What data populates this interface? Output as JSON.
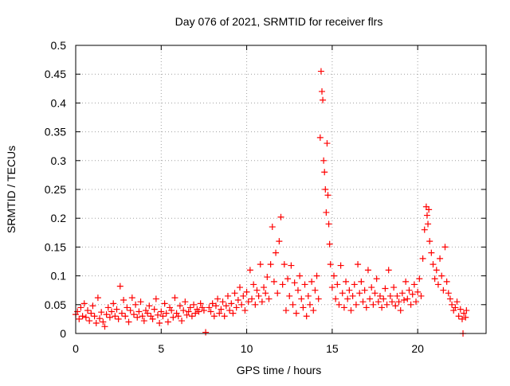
{
  "chart_data": {
    "type": "scatter",
    "title": "Day 076 of 2021, SRMTID for receiver flrs",
    "xlabel": "GPS time / hours",
    "ylabel": "SRMTID / TECUs",
    "xlim": [
      0,
      24
    ],
    "ylim": [
      0,
      0.5
    ],
    "x_ticks": [
      0,
      5,
      10,
      15,
      20
    ],
    "x_tick_labels": [
      "0",
      "5",
      "10",
      "15",
      "20"
    ],
    "y_ticks": [
      0,
      0.05,
      0.1,
      0.15,
      0.2,
      0.25,
      0.3,
      0.35,
      0.4,
      0.45,
      0.5
    ],
    "y_tick_labels": [
      "0",
      "0.05",
      "0.1",
      "0.15",
      "0.2",
      "0.25",
      "0.3",
      "0.35",
      "0.4",
      "0.45",
      "0.5"
    ],
    "grid": true,
    "marker": "+",
    "color": "#ff0000",
    "series": [
      {
        "marker": "+",
        "points": [
          [
            0.0,
            0.033
          ],
          [
            0.1,
            0.038
          ],
          [
            0.2,
            0.025
          ],
          [
            0.3,
            0.045
          ],
          [
            0.4,
            0.03
          ],
          [
            0.5,
            0.052
          ],
          [
            0.6,
            0.028
          ],
          [
            0.7,
            0.04
          ],
          [
            0.8,
            0.022
          ],
          [
            0.9,
            0.035
          ],
          [
            1.0,
            0.048
          ],
          [
            1.1,
            0.03
          ],
          [
            1.2,
            0.018
          ],
          [
            1.3,
            0.062
          ],
          [
            1.4,
            0.026
          ],
          [
            1.5,
            0.037
          ],
          [
            1.6,
            0.02
          ],
          [
            1.7,
            0.012
          ],
          [
            1.8,
            0.033
          ],
          [
            1.9,
            0.045
          ],
          [
            2.0,
            0.028
          ],
          [
            2.1,
            0.038
          ],
          [
            2.2,
            0.052
          ],
          [
            2.3,
            0.03
          ],
          [
            2.4,
            0.042
          ],
          [
            2.5,
            0.025
          ],
          [
            2.6,
            0.082
          ],
          [
            2.7,
            0.035
          ],
          [
            2.8,
            0.058
          ],
          [
            2.9,
            0.03
          ],
          [
            3.0,
            0.045
          ],
          [
            3.1,
            0.02
          ],
          [
            3.2,
            0.04
          ],
          [
            3.3,
            0.062
          ],
          [
            3.4,
            0.033
          ],
          [
            3.5,
            0.05
          ],
          [
            3.6,
            0.028
          ],
          [
            3.7,
            0.038
          ],
          [
            3.8,
            0.055
          ],
          [
            3.9,
            0.03
          ],
          [
            4.0,
            0.022
          ],
          [
            4.1,
            0.04
          ],
          [
            4.2,
            0.035
          ],
          [
            4.3,
            0.048
          ],
          [
            4.4,
            0.03
          ],
          [
            4.5,
            0.025
          ],
          [
            4.6,
            0.042
          ],
          [
            4.7,
            0.06
          ],
          [
            4.8,
            0.032
          ],
          [
            4.9,
            0.018
          ],
          [
            5.0,
            0.038
          ],
          [
            5.1,
            0.03
          ],
          [
            5.2,
            0.052
          ],
          [
            5.3,
            0.035
          ],
          [
            5.4,
            0.02
          ],
          [
            5.5,
            0.045
          ],
          [
            5.6,
            0.04
          ],
          [
            5.7,
            0.028
          ],
          [
            5.8,
            0.062
          ],
          [
            5.9,
            0.035
          ],
          [
            6.0,
            0.03
          ],
          [
            6.1,
            0.048
          ],
          [
            6.2,
            0.022
          ],
          [
            6.3,
            0.04
          ],
          [
            6.4,
            0.055
          ],
          [
            6.5,
            0.032
          ],
          [
            6.6,
            0.038
          ],
          [
            6.7,
            0.045
          ],
          [
            6.8,
            0.03
          ],
          [
            6.9,
            0.05
          ],
          [
            7.0,
            0.035
          ],
          [
            7.1,
            0.042
          ],
          [
            7.2,
            0.038
          ],
          [
            7.3,
            0.052
          ],
          [
            7.4,
            0.045
          ],
          [
            7.5,
            0.04
          ],
          [
            7.6,
            0.002
          ],
          [
            7.8,
            0.045
          ],
          [
            7.9,
            0.038
          ],
          [
            8.0,
            0.052
          ],
          [
            8.1,
            0.03
          ],
          [
            8.2,
            0.048
          ],
          [
            8.3,
            0.06
          ],
          [
            8.4,
            0.035
          ],
          [
            8.5,
            0.042
          ],
          [
            8.6,
            0.055
          ],
          [
            8.7,
            0.03
          ],
          [
            8.8,
            0.048
          ],
          [
            8.9,
            0.065
          ],
          [
            9.0,
            0.04
          ],
          [
            9.1,
            0.052
          ],
          [
            9.2,
            0.035
          ],
          [
            9.3,
            0.07
          ],
          [
            9.4,
            0.045
          ],
          [
            9.5,
            0.058
          ],
          [
            9.6,
            0.08
          ],
          [
            9.7,
            0.05
          ],
          [
            9.8,
            0.065
          ],
          [
            9.9,
            0.04
          ],
          [
            10.0,
            0.072
          ],
          [
            10.1,
            0.055
          ],
          [
            10.2,
            0.11
          ],
          [
            10.3,
            0.06
          ],
          [
            10.4,
            0.085
          ],
          [
            10.5,
            0.05
          ],
          [
            10.6,
            0.075
          ],
          [
            10.7,
            0.065
          ],
          [
            10.8,
            0.12
          ],
          [
            10.9,
            0.055
          ],
          [
            11.0,
            0.08
          ],
          [
            11.1,
            0.07
          ],
          [
            11.2,
            0.098
          ],
          [
            11.3,
            0.06
          ],
          [
            11.4,
            0.12
          ],
          [
            11.5,
            0.185
          ],
          [
            11.6,
            0.09
          ],
          [
            11.7,
            0.14
          ],
          [
            11.8,
            0.07
          ],
          [
            11.9,
            0.16
          ],
          [
            12.0,
            0.202
          ],
          [
            12.1,
            0.085
          ],
          [
            12.2,
            0.12
          ],
          [
            12.3,
            0.04
          ],
          [
            12.4,
            0.095
          ],
          [
            12.5,
            0.065
          ],
          [
            12.6,
            0.118
          ],
          [
            12.7,
            0.05
          ],
          [
            12.8,
            0.088
          ],
          [
            12.9,
            0.035
          ],
          [
            13.0,
            0.075
          ],
          [
            13.1,
            0.1
          ],
          [
            13.2,
            0.06
          ],
          [
            13.3,
            0.045
          ],
          [
            13.4,
            0.085
          ],
          [
            13.5,
            0.03
          ],
          [
            13.6,
            0.065
          ],
          [
            13.7,
            0.05
          ],
          [
            13.8,
            0.09
          ],
          [
            13.9,
            0.04
          ],
          [
            14.0,
            0.075
          ],
          [
            14.1,
            0.1
          ],
          [
            14.2,
            0.06
          ],
          [
            14.3,
            0.34
          ],
          [
            14.35,
            0.455
          ],
          [
            14.4,
            0.42
          ],
          [
            14.45,
            0.405
          ],
          [
            14.5,
            0.3
          ],
          [
            14.55,
            0.28
          ],
          [
            14.6,
            0.25
          ],
          [
            14.65,
            0.21
          ],
          [
            14.7,
            0.33
          ],
          [
            14.75,
            0.24
          ],
          [
            14.8,
            0.19
          ],
          [
            14.85,
            0.155
          ],
          [
            14.9,
            0.12
          ],
          [
            15.0,
            0.08
          ],
          [
            15.1,
            0.1
          ],
          [
            15.2,
            0.06
          ],
          [
            15.3,
            0.085
          ],
          [
            15.4,
            0.05
          ],
          [
            15.5,
            0.118
          ],
          [
            15.6,
            0.07
          ],
          [
            15.7,
            0.045
          ],
          [
            15.8,
            0.09
          ],
          [
            15.9,
            0.06
          ],
          [
            16.0,
            0.075
          ],
          [
            16.1,
            0.04
          ],
          [
            16.2,
            0.065
          ],
          [
            16.3,
            0.085
          ],
          [
            16.4,
            0.05
          ],
          [
            16.5,
            0.12
          ],
          [
            16.6,
            0.07
          ],
          [
            16.7,
            0.09
          ],
          [
            16.8,
            0.055
          ],
          [
            16.9,
            0.075
          ],
          [
            17.0,
            0.045
          ],
          [
            17.1,
            0.11
          ],
          [
            17.2,
            0.06
          ],
          [
            17.3,
            0.08
          ],
          [
            17.4,
            0.05
          ],
          [
            17.5,
            0.07
          ],
          [
            17.6,
            0.095
          ],
          [
            17.7,
            0.055
          ],
          [
            17.8,
            0.065
          ],
          [
            17.9,
            0.045
          ],
          [
            18.0,
            0.06
          ],
          [
            18.1,
            0.078
          ],
          [
            18.2,
            0.05
          ],
          [
            18.3,
            0.11
          ],
          [
            18.4,
            0.065
          ],
          [
            18.5,
            0.055
          ],
          [
            18.6,
            0.08
          ],
          [
            18.7,
            0.048
          ],
          [
            18.8,
            0.065
          ],
          [
            18.9,
            0.055
          ],
          [
            19.0,
            0.04
          ],
          [
            19.1,
            0.07
          ],
          [
            19.2,
            0.058
          ],
          [
            19.3,
            0.09
          ],
          [
            19.4,
            0.06
          ],
          [
            19.5,
            0.075
          ],
          [
            19.6,
            0.05
          ],
          [
            19.7,
            0.068
          ],
          [
            19.8,
            0.085
          ],
          [
            19.9,
            0.055
          ],
          [
            20.0,
            0.072
          ],
          [
            20.1,
            0.095
          ],
          [
            20.2,
            0.065
          ],
          [
            20.3,
            0.13
          ],
          [
            20.4,
            0.18
          ],
          [
            20.5,
            0.22
          ],
          [
            20.55,
            0.205
          ],
          [
            20.6,
            0.19
          ],
          [
            20.65,
            0.215
          ],
          [
            20.7,
            0.16
          ],
          [
            20.8,
            0.14
          ],
          [
            20.9,
            0.12
          ],
          [
            21.0,
            0.095
          ],
          [
            21.1,
            0.11
          ],
          [
            21.2,
            0.085
          ],
          [
            21.3,
            0.13
          ],
          [
            21.4,
            0.1
          ],
          [
            21.5,
            0.075
          ],
          [
            21.6,
            0.15
          ],
          [
            21.7,
            0.09
          ],
          [
            21.8,
            0.07
          ],
          [
            21.9,
            0.06
          ],
          [
            22.0,
            0.05
          ],
          [
            22.1,
            0.04
          ],
          [
            22.2,
            0.045
          ],
          [
            22.3,
            0.055
          ],
          [
            22.4,
            0.03
          ],
          [
            22.5,
            0.042
          ],
          [
            22.6,
            0.025
          ],
          [
            22.65,
            0.0
          ],
          [
            22.7,
            0.035
          ],
          [
            22.8,
            0.028
          ],
          [
            22.85,
            0.04
          ]
        ]
      }
    ]
  }
}
